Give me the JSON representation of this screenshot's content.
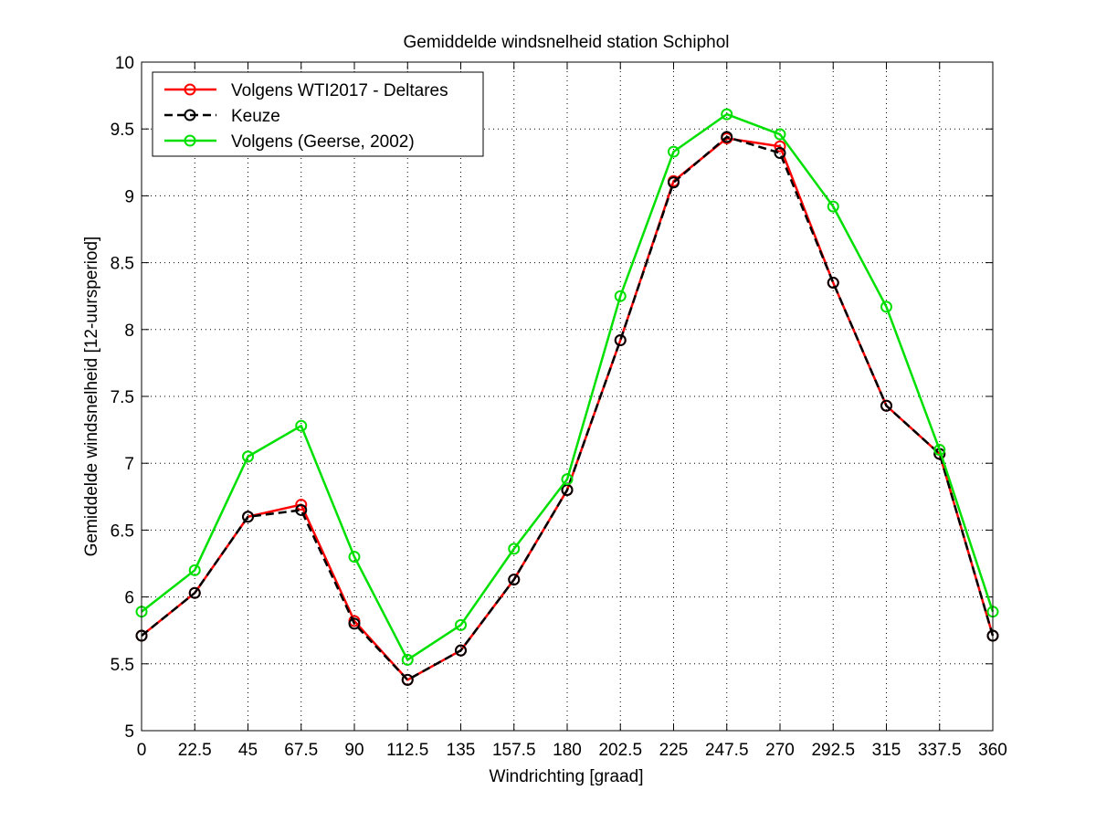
{
  "chart_data": {
    "type": "line",
    "title": "Gemiddelde windsnelheid station Schiphol",
    "xlabel": "Windrichting [graad]",
    "ylabel": "Gemiddelde windsnelheid [12-uursperiod]",
    "xlim": [
      0,
      360
    ],
    "ylim": [
      5,
      10
    ],
    "grid": true,
    "legend_position": "top-left",
    "x": [
      0,
      22.5,
      45,
      67.5,
      90,
      112.5,
      135,
      157.5,
      180,
      202.5,
      225,
      247.5,
      270,
      292.5,
      315,
      337.5,
      360
    ],
    "x_ticks": [
      "0",
      "22.5",
      "45",
      "67.5",
      "90",
      "112.5",
      "135",
      "157.5",
      "180",
      "202.5",
      "225",
      "247.5",
      "270",
      "292.5",
      "315",
      "337.5",
      "360"
    ],
    "y_ticks": [
      "5",
      "5.5",
      "6",
      "6.5",
      "7",
      "7.5",
      "8",
      "8.5",
      "9",
      "9.5",
      "10"
    ],
    "series": [
      {
        "name": "Volgens WTI2017 - Deltares",
        "color": "#ff0000",
        "dash": "solid",
        "values": [
          5.71,
          6.03,
          6.6,
          6.69,
          5.82,
          5.38,
          5.6,
          6.13,
          6.8,
          7.92,
          9.11,
          9.43,
          9.37,
          8.35,
          7.43,
          7.07,
          5.71
        ]
      },
      {
        "name": "Keuze",
        "color": "#000000",
        "dash": "dashed",
        "values": [
          5.71,
          6.03,
          6.6,
          6.65,
          5.8,
          5.38,
          5.6,
          6.13,
          6.8,
          7.92,
          9.1,
          9.44,
          9.32,
          8.35,
          7.43,
          7.07,
          5.71
        ]
      },
      {
        "name": "Volgens (Geerse, 2002)",
        "color": "#00e000",
        "dash": "solid",
        "values": [
          5.89,
          6.2,
          7.05,
          7.28,
          6.3,
          5.53,
          5.79,
          6.36,
          6.88,
          8.25,
          9.33,
          9.61,
          9.46,
          8.92,
          8.17,
          7.1,
          5.89
        ]
      }
    ]
  }
}
